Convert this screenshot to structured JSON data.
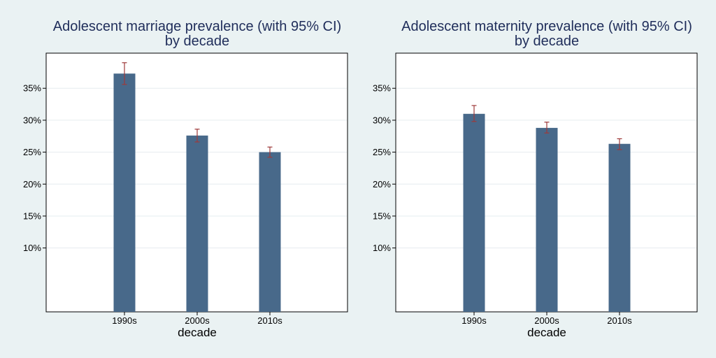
{
  "colors": {
    "background": "#eaf2f3",
    "plot_background": "#ffffff",
    "bar": "#48698a",
    "error_bar": "#9e3a3a",
    "title": "#1f2d5a"
  },
  "chart_data": [
    {
      "type": "bar",
      "title_lines": [
        "Adolescent marriage prevalence (with 95% CI)",
        "by decade"
      ],
      "xlabel": "decade",
      "ylabel": "",
      "categories": [
        "1990s",
        "2000s",
        "2010s"
      ],
      "values": [
        37.3,
        27.6,
        25.0
      ],
      "ci_low": [
        35.6,
        26.6,
        24.2
      ],
      "ci_high": [
        39.0,
        28.6,
        25.8
      ],
      "ylim": [
        0,
        40.5
      ],
      "yticks": [
        10,
        15,
        20,
        25,
        30,
        35
      ],
      "ytick_labels": [
        "10%",
        "15%",
        "20%",
        "25%",
        "30%",
        "35%"
      ],
      "grid": true,
      "error_bars": "95% CI"
    },
    {
      "type": "bar",
      "title_lines": [
        "Adolescent maternity prevalence (with 95% CI)",
        "by decade"
      ],
      "xlabel": "decade",
      "ylabel": "",
      "categories": [
        "1990s",
        "2000s",
        "2010s"
      ],
      "values": [
        31.0,
        28.8,
        26.3
      ],
      "ci_low": [
        29.8,
        28.0,
        25.4
      ],
      "ci_high": [
        32.3,
        29.7,
        27.1
      ],
      "ylim": [
        0,
        40.5
      ],
      "yticks": [
        10,
        15,
        20,
        25,
        30,
        35
      ],
      "ytick_labels": [
        "10%",
        "15%",
        "20%",
        "25%",
        "30%",
        "35%"
      ],
      "grid": true,
      "error_bars": "95% CI"
    }
  ]
}
